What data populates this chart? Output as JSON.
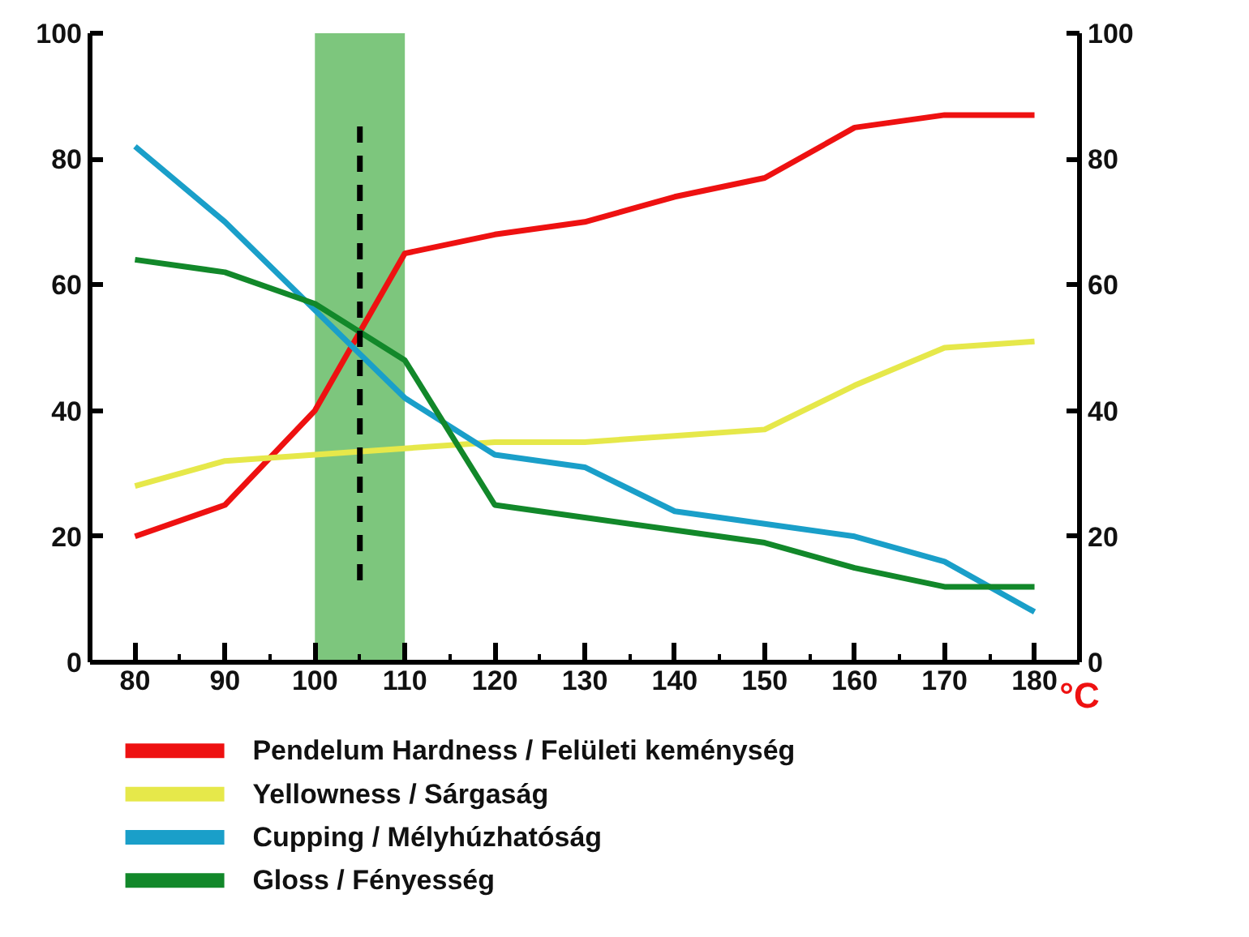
{
  "chart_data": {
    "type": "line",
    "xlabel": "°C",
    "x": [
      80,
      90,
      100,
      110,
      120,
      130,
      140,
      150,
      160,
      170,
      180
    ],
    "series": [
      {
        "name": "Pendelum Hardness / Felületi keménység",
        "color": "#ee1111",
        "values": [
          20,
          25,
          40,
          65,
          68,
          70,
          74,
          77,
          85,
          87,
          87
        ]
      },
      {
        "name": "Yellowness / Sárgaság",
        "color": "#e6e84a",
        "values": [
          28,
          32,
          33,
          34,
          35,
          35,
          36,
          37,
          44,
          50,
          51
        ]
      },
      {
        "name": "Cupping  / Mélyhúzhatóság",
        "color": "#1a9fc9",
        "values": [
          82,
          70,
          56,
          42,
          33,
          31,
          24,
          22,
          20,
          16,
          8
        ]
      },
      {
        "name": "Gloss / Fényesség",
        "color": "#12882a",
        "values": [
          64,
          62,
          57,
          48,
          25,
          23,
          21,
          19,
          15,
          12,
          12
        ]
      }
    ],
    "xlim": [
      75,
      185
    ],
    "xticks": [
      80,
      90,
      100,
      110,
      120,
      130,
      140,
      150,
      160,
      170,
      180
    ],
    "ylim": [
      0,
      100
    ],
    "yticks": [
      0,
      20,
      40,
      60,
      80,
      100
    ],
    "y2lim": [
      0,
      100
    ],
    "y2ticks": [
      0,
      20,
      40,
      60,
      80,
      100
    ],
    "ref_lines": [
      {
        "axis": "x",
        "value": 105,
        "color": "#000000",
        "line_style": "dashed"
      }
    ],
    "bands": [
      {
        "axis": "x",
        "from": 100,
        "to": 110,
        "color": "#5cb85c"
      }
    ],
    "grid": false,
    "legend": "bottom",
    "line_style": "solid",
    "marker": "none"
  }
}
